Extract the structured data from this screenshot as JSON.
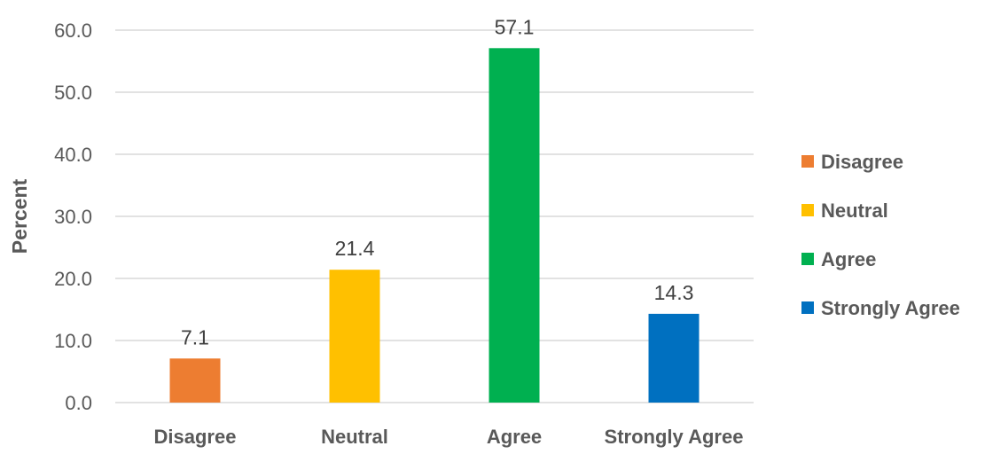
{
  "chart_data": {
    "type": "bar",
    "categories": [
      "Disagree",
      "Neutral",
      "Agree",
      "Strongly Agree"
    ],
    "values": [
      7.1,
      21.4,
      57.1,
      14.3
    ],
    "value_labels": [
      "7.1",
      "21.4",
      "57.1",
      "14.3"
    ],
    "colors": [
      "#ED7D31",
      "#FFC000",
      "#00B050",
      "#0070C0"
    ],
    "ylabel": "Percent",
    "xlabel": "",
    "ylim": [
      0,
      60
    ],
    "yticks": [
      0,
      10,
      20,
      30,
      40,
      50,
      60
    ],
    "ytick_labels": [
      "0.0",
      "10.0",
      "20.0",
      "30.0",
      "40.0",
      "50.0",
      "60.0"
    ],
    "grid": true,
    "legend": {
      "placement": "right",
      "entries": [
        "Disagree",
        "Neutral",
        "Agree",
        "Strongly Agree"
      ]
    }
  }
}
